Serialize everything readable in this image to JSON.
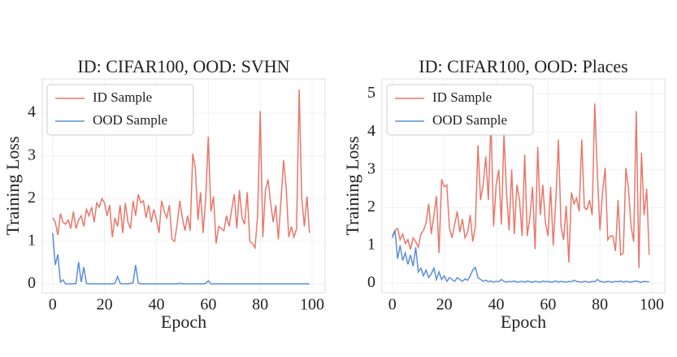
{
  "chart_data": [
    {
      "type": "line",
      "title": "ID: CIFAR100, OOD: SVHN",
      "xlabel": "Epoch",
      "ylabel": "Training Loss",
      "x": [
        0,
        1,
        2,
        3,
        4,
        5,
        6,
        7,
        8,
        9,
        10,
        11,
        12,
        13,
        14,
        15,
        16,
        17,
        18,
        19,
        20,
        21,
        22,
        23,
        24,
        25,
        26,
        27,
        28,
        29,
        30,
        31,
        32,
        33,
        34,
        35,
        36,
        37,
        38,
        39,
        40,
        41,
        42,
        43,
        44,
        45,
        46,
        47,
        48,
        49,
        50,
        51,
        52,
        53,
        54,
        55,
        56,
        57,
        58,
        59,
        60,
        61,
        62,
        63,
        64,
        65,
        66,
        67,
        68,
        69,
        70,
        71,
        72,
        73,
        74,
        75,
        76,
        77,
        78,
        79,
        80,
        81,
        82,
        83,
        84,
        85,
        86,
        87,
        88,
        89,
        90,
        91,
        92,
        93,
        94,
        95,
        96,
        97,
        98,
        99
      ],
      "series": [
        {
          "name": "ID Sample",
          "color": "#e8776b",
          "values": [
            1.55,
            1.45,
            1.15,
            1.65,
            1.45,
            1.4,
            1.5,
            1.3,
            1.7,
            1.3,
            1.5,
            1.6,
            1.35,
            1.75,
            1.6,
            1.8,
            1.45,
            1.9,
            1.8,
            2.0,
            1.9,
            1.6,
            1.85,
            1.1,
            1.55,
            1.35,
            1.85,
            1.2,
            1.9,
            1.45,
            1.3,
            1.95,
            1.6,
            2.1,
            1.9,
            1.95,
            1.55,
            1.85,
            1.45,
            1.75,
            1.5,
            1.2,
            1.95,
            1.7,
            1.55,
            1.85,
            1.05,
            1.0,
            1.4,
            1.95,
            1.55,
            1.25,
            1.6,
            1.25,
            3.05,
            2.7,
            1.5,
            2.15,
            1.2,
            2.0,
            3.45,
            1.7,
            2.05,
            0.95,
            1.35,
            1.3,
            1.25,
            1.6,
            1.35,
            1.75,
            2.1,
            1.3,
            2.2,
            1.55,
            1.4,
            2.15,
            1.0,
            0.95,
            0.85,
            1.6,
            4.05,
            1.1,
            2.2,
            2.45,
            1.9,
            1.45,
            1.85,
            1.05,
            1.95,
            2.9,
            2.25,
            1.1,
            1.35,
            1.1,
            1.3,
            4.55,
            2.0,
            1.35,
            2.05,
            1.2
          ]
        },
        {
          "name": "OOD Sample",
          "color": "#5b8fd9",
          "values": [
            1.2,
            0.45,
            0.7,
            0.05,
            0.1,
            0.01,
            0.01,
            0.01,
            0.01,
            0.02,
            0.52,
            0.05,
            0.4,
            0.02,
            0.01,
            0.01,
            0.01,
            0.01,
            0.01,
            0.01,
            0.01,
            0.01,
            0.01,
            0.01,
            0.02,
            0.18,
            0.02,
            0.01,
            0.01,
            0.01,
            0.02,
            0.03,
            0.45,
            0.03,
            0.01,
            0.01,
            0.01,
            0.01,
            0.01,
            0.01,
            0.01,
            0.01,
            0.01,
            0.01,
            0.01,
            0.01,
            0.01,
            0.01,
            0.01,
            0.02,
            0.01,
            0.01,
            0.01,
            0.01,
            0.01,
            0.01,
            0.01,
            0.01,
            0.01,
            0.02,
            0.08,
            0.01,
            0.01,
            0.01,
            0.01,
            0.01,
            0.01,
            0.01,
            0.01,
            0.01,
            0.01,
            0.01,
            0.01,
            0.01,
            0.01,
            0.01,
            0.01,
            0.01,
            0.01,
            0.01,
            0.01,
            0.01,
            0.01,
            0.01,
            0.01,
            0.01,
            0.01,
            0.01,
            0.01,
            0.01,
            0.01,
            0.01,
            0.01,
            0.01,
            0.01,
            0.01,
            0.01,
            0.01,
            0.01,
            0.01
          ]
        }
      ],
      "xlim": [
        -4,
        105
      ],
      "xticks": [
        0,
        20,
        40,
        60,
        80,
        100
      ],
      "ylim": [
        -0.2,
        4.8
      ],
      "yticks": [
        0,
        1,
        2,
        3,
        4
      ],
      "grid": true,
      "legend": "upper left"
    },
    {
      "type": "line",
      "title": "ID: CIFAR100, OOD: Places",
      "xlabel": "Epoch",
      "ylabel": "Training Loss",
      "x": [
        0,
        1,
        2,
        3,
        4,
        5,
        6,
        7,
        8,
        9,
        10,
        11,
        12,
        13,
        14,
        15,
        16,
        17,
        18,
        19,
        20,
        21,
        22,
        23,
        24,
        25,
        26,
        27,
        28,
        29,
        30,
        31,
        32,
        33,
        34,
        35,
        36,
        37,
        38,
        39,
        40,
        41,
        42,
        43,
        44,
        45,
        46,
        47,
        48,
        49,
        50,
        51,
        52,
        53,
        54,
        55,
        56,
        57,
        58,
        59,
        60,
        61,
        62,
        63,
        64,
        65,
        66,
        67,
        68,
        69,
        70,
        71,
        72,
        73,
        74,
        75,
        76,
        77,
        78,
        79,
        80,
        81,
        82,
        83,
        84,
        85,
        86,
        87,
        88,
        89,
        90,
        91,
        92,
        93,
        94,
        95,
        96,
        97,
        98,
        99
      ],
      "series": [
        {
          "name": "ID Sample",
          "color": "#e8776b",
          "values": [
            1.25,
            1.4,
            1.45,
            1.15,
            1.3,
            1.05,
            1.15,
            0.9,
            1.2,
            1.1,
            0.95,
            1.3,
            1.4,
            1.6,
            2.1,
            1.3,
            1.8,
            2.3,
            0.8,
            2.75,
            2.55,
            2.6,
            1.45,
            1.2,
            1.55,
            1.9,
            1.35,
            1.7,
            1.2,
            1.35,
            1.8,
            1.1,
            1.5,
            3.65,
            2.2,
            2.6,
            3.35,
            2.2,
            4.35,
            1.5,
            2.6,
            3.0,
            1.55,
            3.95,
            2.4,
            1.4,
            3.0,
            1.3,
            2.6,
            2.2,
            1.25,
            3.4,
            1.25,
            1.75,
            2.55,
            0.9,
            3.6,
            1.8,
            2.6,
            1.6,
            1.25,
            2.55,
            1.0,
            2.2,
            3.8,
            1.5,
            1.15,
            2.05,
            0.55,
            2.4,
            2.1,
            2.25,
            1.9,
            3.8,
            2.0,
            1.95,
            2.2,
            1.8,
            4.75,
            2.9,
            1.4,
            2.4,
            3.05,
            1.15,
            1.25,
            1.25,
            0.85,
            2.2,
            0.75,
            0.8,
            3.05,
            2.5,
            1.5,
            1.1,
            4.55,
            0.4,
            3.45,
            1.8,
            2.5,
            0.75
          ]
        },
        {
          "name": "OOD Sample",
          "color": "#5b8fd9",
          "values": [
            1.2,
            1.4,
            0.65,
            1.0,
            0.6,
            0.8,
            0.5,
            0.75,
            0.45,
            0.95,
            0.3,
            0.4,
            0.2,
            0.35,
            0.15,
            0.25,
            0.4,
            0.1,
            0.3,
            0.1,
            0.2,
            0.05,
            0.15,
            0.1,
            0.05,
            0.15,
            0.1,
            0.05,
            0.12,
            0.08,
            0.2,
            0.35,
            0.42,
            0.15,
            0.1,
            0.05,
            0.08,
            0.04,
            0.06,
            0.03,
            0.05,
            0.04,
            0.1,
            0.05,
            0.03,
            0.05,
            0.04,
            0.06,
            0.03,
            0.04,
            0.05,
            0.03,
            0.06,
            0.04,
            0.03,
            0.05,
            0.04,
            0.03,
            0.06,
            0.04,
            0.05,
            0.03,
            0.04,
            0.06,
            0.03,
            0.05,
            0.04,
            0.03,
            0.05,
            0.04,
            0.08,
            0.05,
            0.04,
            0.03,
            0.05,
            0.04,
            0.03,
            0.05,
            0.04,
            0.1,
            0.05,
            0.04,
            0.03,
            0.05,
            0.04,
            0.03,
            0.05,
            0.04,
            0.06,
            0.03,
            0.05,
            0.04,
            0.03,
            0.05,
            0.06,
            0.04,
            0.03,
            0.05,
            0.04,
            0.04
          ]
        }
      ],
      "xlim": [
        -4,
        105
      ],
      "xticks": [
        0,
        20,
        40,
        60,
        80,
        100
      ],
      "ylim": [
        -0.25,
        5.4
      ],
      "yticks": [
        0,
        1,
        2,
        3,
        4,
        5
      ],
      "grid": true,
      "legend": "upper left"
    }
  ]
}
